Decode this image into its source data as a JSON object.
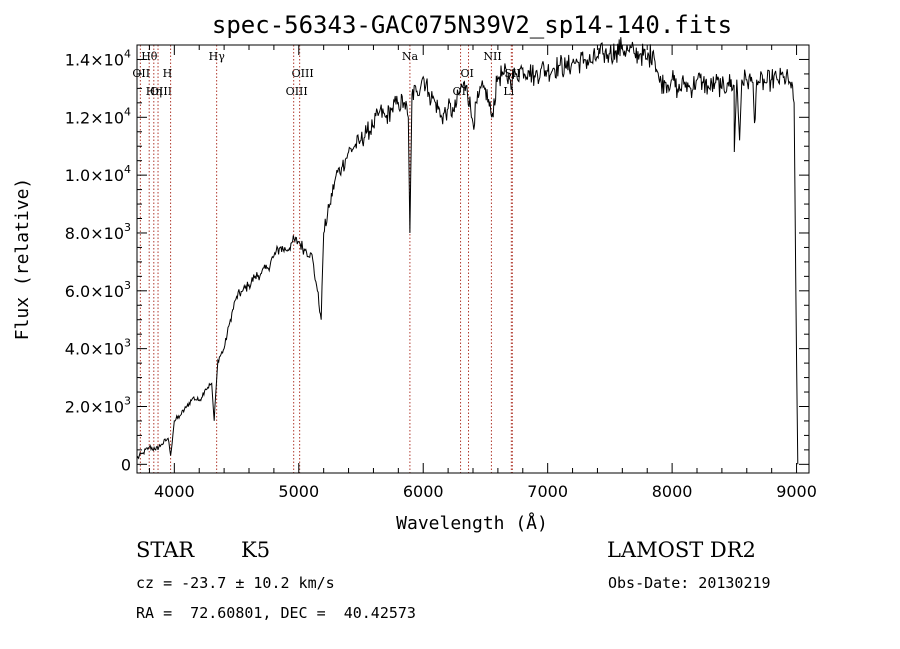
{
  "chart_data": {
    "type": "line",
    "title": "spec-56343-GAC075N39V2_sp14-140.fits",
    "xlabel": "Wavelength (Å)",
    "ylabel": "Flux (relative)",
    "xlim": [
      3700,
      9100
    ],
    "ylim": [
      -300,
      14500
    ],
    "x_ticks": [
      4000,
      5000,
      6000,
      7000,
      8000,
      9000
    ],
    "y_ticks": [
      {
        "value": 0,
        "mantissa": "0",
        "exp": ""
      },
      {
        "value": 2000,
        "mantissa": "2.0×10",
        "exp": "3"
      },
      {
        "value": 4000,
        "mantissa": "4.0×10",
        "exp": "3"
      },
      {
        "value": 6000,
        "mantissa": "6.0×10",
        "exp": "3"
      },
      {
        "value": 8000,
        "mantissa": "8.0×10",
        "exp": "3"
      },
      {
        "value": 10000,
        "mantissa": "1.0×10",
        "exp": "4"
      },
      {
        "value": 12000,
        "mantissa": "1.2×10",
        "exp": "4"
      },
      {
        "value": 14000,
        "mantissa": "1.4×10",
        "exp": "4"
      }
    ],
    "grid": false,
    "series": [
      {
        "x": [
          3700,
          3750,
          3800,
          3850,
          3900,
          3950,
          3970,
          4000,
          4050,
          4100,
          4150,
          4200,
          4250,
          4300,
          4320,
          4350,
          4400,
          4450,
          4500,
          4550,
          4600,
          4650,
          4700,
          4750,
          4800,
          4850,
          4900,
          4950,
          5000,
          5050,
          5100,
          5150,
          5180,
          5200,
          5250,
          5300,
          5350,
          5400,
          5450,
          5500,
          5550,
          5600,
          5650,
          5700,
          5750,
          5800,
          5850,
          5880,
          5893,
          5910,
          5950,
          6000,
          6050,
          6100,
          6150,
          6200,
          6250,
          6300,
          6350,
          6400,
          6450,
          6500,
          6550,
          6600,
          6650,
          6700,
          6750,
          6800,
          6850,
          6900,
          6950,
          7000,
          7050,
          7100,
          7150,
          7200,
          7250,
          7300,
          7350,
          7400,
          7450,
          7500,
          7550,
          7600,
          7650,
          7700,
          7750,
          7800,
          7850,
          7900,
          7950,
          8000,
          8050,
          8100,
          8150,
          8200,
          8250,
          8300,
          8350,
          8400,
          8450,
          8498,
          8500,
          8520,
          8542,
          8560,
          8600,
          8650,
          8662,
          8680,
          8700,
          8750,
          8800,
          8850,
          8900,
          8950,
          8980,
          9000,
          9010
        ],
        "y": [
          200,
          400,
          600,
          500,
          700,
          900,
          300,
          1500,
          1700,
          2000,
          2300,
          2200,
          2600,
          2800,
          1500,
          3600,
          4000,
          5000,
          5800,
          6000,
          6200,
          6500,
          6600,
          6800,
          7200,
          7500,
          7400,
          7700,
          7700,
          7400,
          7300,
          6000,
          5000,
          8000,
          9000,
          10000,
          10300,
          10800,
          11000,
          11200,
          11500,
          11700,
          12200,
          12000,
          12300,
          12500,
          12500,
          12000,
          8000,
          12800,
          12900,
          13400,
          12800,
          12500,
          12000,
          12300,
          12200,
          13000,
          13100,
          11800,
          12800,
          13000,
          12000,
          13400,
          13500,
          13300,
          13500,
          13700,
          13600,
          13400,
          13700,
          13600,
          13700,
          13800,
          13700,
          13900,
          13900,
          14000,
          13900,
          14100,
          14200,
          14200,
          14300,
          14400,
          14300,
          14200,
          14200,
          14000,
          14300,
          13200,
          13200,
          13300,
          12900,
          13200,
          13000,
          13300,
          13200,
          13000,
          13200,
          13000,
          13200,
          13100,
          10800,
          13300,
          11200,
          13300,
          13300,
          13200,
          11800,
          13300,
          13200,
          13200,
          13300,
          13300,
          13400,
          13200,
          12500,
          3500,
          0
        ]
      }
    ],
    "lines": [
      {
        "name": "Hθ",
        "x": 3798,
        "row": 1
      },
      {
        "name": "OII",
        "x": 3727,
        "row": 2
      },
      {
        "name": "OIII",
        "x": 3869,
        "row": 3
      },
      {
        "name": "Hη",
        "x": 3835,
        "row": 3
      },
      {
        "name": "H",
        "x": 3970,
        "row": 2
      },
      {
        "name": "Hγ",
        "x": 4340,
        "row": 1
      },
      {
        "name": "OIII",
        "x": 5007,
        "row": 2
      },
      {
        "name": "OIII",
        "x": 4959,
        "row": 3
      },
      {
        "name": "Na",
        "x": 5893,
        "row": 1
      },
      {
        "name": "OI",
        "x": 6364,
        "row": 2
      },
      {
        "name": "OI",
        "x": 6300,
        "row": 3
      },
      {
        "name": "NII",
        "x": 6548,
        "row": 1
      },
      {
        "name": "SII",
        "x": 6716,
        "row": 2
      },
      {
        "name": "Li",
        "x": 6708,
        "row": 3
      }
    ]
  },
  "info": {
    "class_label": "STAR",
    "subclass": "K5",
    "survey": "LAMOST DR2",
    "redshift": "cz = -23.7 ± 10.2 km/s",
    "obs_date": "Obs-Date: 20130219",
    "coords": "RA =  72.60801, DEC =  40.42573"
  },
  "colors": {
    "axis": "#000000",
    "spectrum": "#000000",
    "emission_lines": "#b03a2e"
  }
}
